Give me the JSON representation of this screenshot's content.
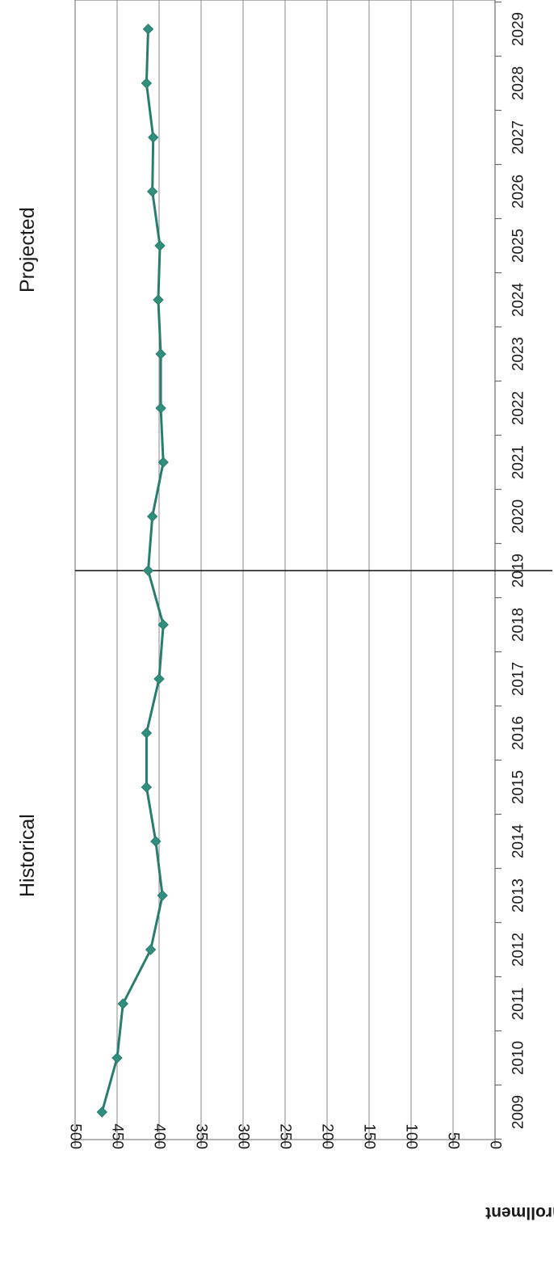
{
  "chart_data": {
    "type": "line",
    "orientation": "rotated-90-clockwise",
    "ylabel": "Enrollment",
    "xlabel": "",
    "title": "",
    "ylim": [
      0,
      500
    ],
    "yticks": [
      0,
      50,
      100,
      150,
      200,
      250,
      300,
      350,
      400,
      450,
      500
    ],
    "categories": [
      "2009",
      "2010",
      "2011",
      "2012",
      "2013",
      "2014",
      "2015",
      "2016",
      "2017",
      "2018",
      "2019",
      "2020",
      "2021",
      "2022",
      "2023",
      "2024",
      "2025",
      "2026",
      "2027",
      "2028",
      "2029"
    ],
    "series": [
      {
        "values": [
          468,
          450,
          443,
          410,
          396,
          404,
          415,
          415,
          400,
          395,
          413,
          408,
          395,
          398,
          398,
          401,
          399,
          408,
          407,
          415,
          413
        ]
      }
    ],
    "annotations": [
      {
        "text": "Historical"
      },
      {
        "text": "Projected"
      }
    ],
    "divider_at": "2019",
    "grid": true,
    "legend": "none",
    "colors": {
      "series": "#2a7d6e",
      "marker": "#2f8f7c",
      "divider": "#111111",
      "grid": "#8a8a8a"
    }
  }
}
